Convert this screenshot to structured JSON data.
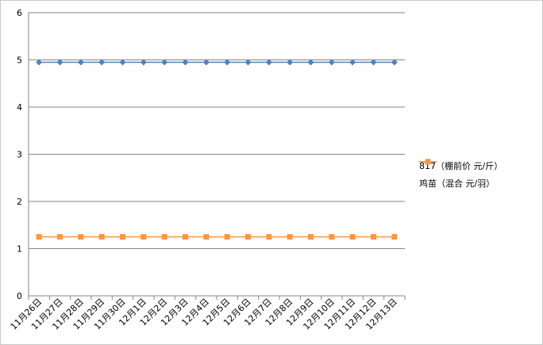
{
  "chart_data": {
    "type": "line",
    "title": "",
    "xlabel": "",
    "ylabel": "",
    "ylim": [
      0,
      6
    ],
    "yticks": [
      0,
      1,
      2,
      3,
      4,
      5,
      6
    ],
    "grid": true,
    "legend_position": "right",
    "categories": [
      "11月26日",
      "11月27日",
      "11月28日",
      "11月29日",
      "11月30日",
      "12月1日",
      "12月2日",
      "12月3日",
      "12月4日",
      "12月5日",
      "12月6日",
      "12月7日",
      "12月8日",
      "12月9日",
      "12月10日",
      "12月11日",
      "12月12日",
      "12月13日"
    ],
    "series": [
      {
        "name": "817（棚前价 元/斤）",
        "color": "#4f81bd",
        "marker": "diamond",
        "values": [
          4.95,
          4.95,
          4.95,
          4.95,
          4.95,
          4.95,
          4.95,
          4.95,
          4.95,
          4.95,
          4.95,
          4.95,
          4.95,
          4.95,
          4.95,
          4.95,
          4.95,
          4.95
        ]
      },
      {
        "name": "鸡苗（混合 元/羽）",
        "color": "#f79646",
        "marker": "square",
        "values": [
          1.25,
          1.25,
          1.25,
          1.25,
          1.25,
          1.25,
          1.25,
          1.25,
          1.25,
          1.25,
          1.25,
          1.25,
          1.25,
          1.25,
          1.25,
          1.25,
          1.25,
          1.25
        ]
      }
    ]
  }
}
